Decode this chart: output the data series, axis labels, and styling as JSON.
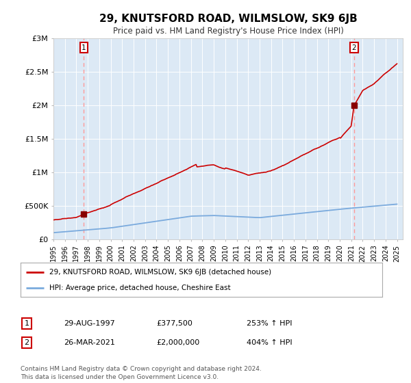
{
  "title": "29, KNUTSFORD ROAD, WILMSLOW, SK9 6JB",
  "subtitle": "Price paid vs. HM Land Registry's House Price Index (HPI)",
  "background_color": "#ffffff",
  "plot_bg_color": "#dce9f5",
  "red_line_label": "29, KNUTSFORD ROAD, WILMSLOW, SK9 6JB (detached house)",
  "blue_line_label": "HPI: Average price, detached house, Cheshire East",
  "sale1_date": "29-AUG-1997",
  "sale1_price": 377500,
  "sale1_hpi": "253% ↑ HPI",
  "sale2_date": "26-MAR-2021",
  "sale2_price": 2000000,
  "sale2_hpi": "404% ↑ HPI",
  "footer": "Contains HM Land Registry data © Crown copyright and database right 2024.\nThis data is licensed under the Open Government Licence v3.0.",
  "ylim": [
    0,
    3000000
  ],
  "yticks": [
    0,
    500000,
    1000000,
    1500000,
    2000000,
    2500000,
    3000000
  ],
  "ytick_labels": [
    "£0",
    "£500K",
    "£1M",
    "£1.5M",
    "£2M",
    "£2.5M",
    "£3M"
  ],
  "sale1_x": 1997.66,
  "sale2_x": 2021.23,
  "red_color": "#cc0000",
  "blue_color": "#7aaadd",
  "dashed_color": "#ff9999",
  "marker_color": "#880000",
  "grid_color": "#ffffff",
  "xlim_start": 1995,
  "xlim_end": 2025.5
}
